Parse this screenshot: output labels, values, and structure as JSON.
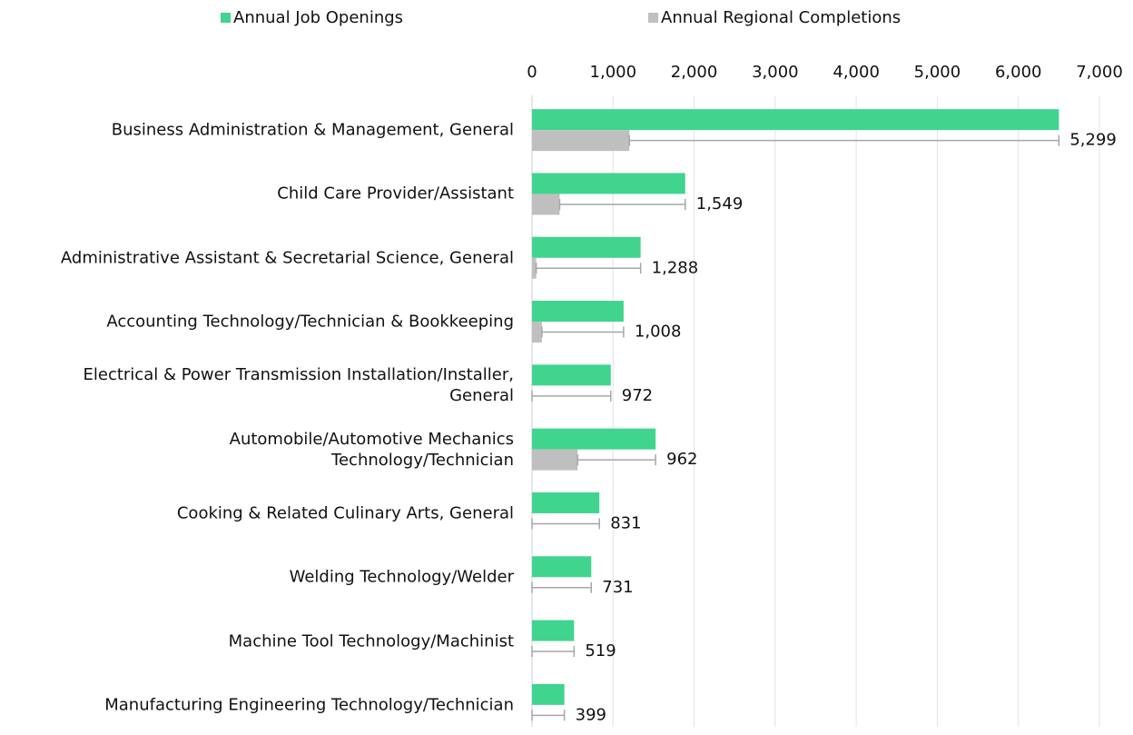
{
  "chart_data": {
    "type": "bar",
    "orientation": "horizontal",
    "categories": [
      "Business Administration & Management, General",
      "Child Care Provider/Assistant",
      "Administrative Assistant & Secretarial Science, General",
      "Accounting Technology/Technician & Bookkeeping",
      "Electrical & Power Transmission Installation/Installer,\nGeneral",
      "Automobile/Automotive Mechanics\nTechnology/Technician",
      "Cooking & Related Culinary Arts, General",
      "Welding Technology/Welder",
      "Machine Tool Technology/Machinist",
      "Manufacturing Engineering Technology/Technician"
    ],
    "series": [
      {
        "name": "Annual Job Openings",
        "color": "#40d48e",
        "values": [
          6500,
          1890,
          1340,
          1130,
          972,
          1525,
          831,
          731,
          519,
          399
        ]
      },
      {
        "name": "Annual Regional Completions",
        "color": "#bfbfbf",
        "values": [
          1201,
          341,
          52,
          122,
          0,
          563,
          0,
          0,
          0,
          0
        ],
        "errors": [
          5299,
          1549,
          1288,
          1008,
          972,
          962,
          831,
          731,
          519,
          399
        ],
        "error_labels": [
          "5,299",
          "1,549",
          "1,288",
          "1,008",
          "972",
          "962",
          "831",
          "731",
          "519",
          "399"
        ]
      }
    ],
    "xlim": [
      0,
      7000
    ],
    "xticks": [
      0,
      {
        "value": 1000,
        "label": "1,000"
      },
      {
        "value": 2000,
        "label": "2,000"
      },
      {
        "value": 3000,
        "label": "3,000"
      },
      {
        "value": 4000,
        "label": "4,000"
      },
      {
        "value": 5000,
        "label": "5,000"
      },
      {
        "value": 6000,
        "label": "6,000"
      },
      {
        "value": 7000,
        "label": "7,000"
      }
    ],
    "grid": true,
    "legend": "top"
  }
}
